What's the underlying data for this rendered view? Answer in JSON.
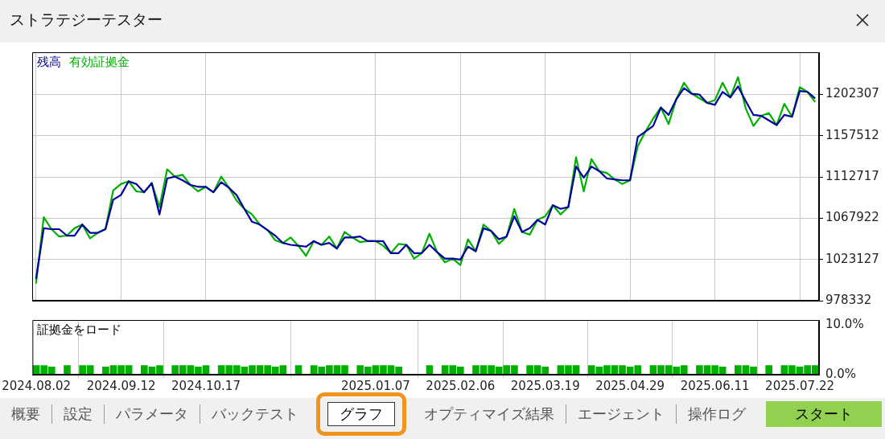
{
  "chart_data": [
    {
      "type": "line",
      "title": "ストラテジーテスター",
      "categories": [
        "2024.08.02",
        null,
        null,
        null,
        null,
        null,
        null,
        null,
        null,
        null,
        null,
        "2024.09.12",
        null,
        null,
        null,
        null,
        null,
        null,
        null,
        null,
        null,
        null,
        "2024.10.17",
        null,
        null,
        null,
        null,
        null,
        null,
        null,
        null,
        null,
        null,
        null,
        null,
        null,
        null,
        null,
        null,
        null,
        null,
        null,
        null,
        null,
        "2025.01.07",
        null,
        null,
        null,
        null,
        null,
        null,
        null,
        null,
        null,
        null,
        "2025.02.06",
        null,
        null,
        null,
        null,
        null,
        null,
        null,
        null,
        null,
        null,
        "2025.03.19",
        null,
        null,
        null,
        null,
        null,
        null,
        null,
        null,
        null,
        null,
        "2025.04.29",
        null,
        null,
        null,
        null,
        null,
        null,
        null,
        null,
        null,
        null,
        "2025.06.11",
        null,
        null,
        null,
        null,
        null,
        null,
        null,
        null,
        null,
        null,
        "2025.07.22",
        null,
        null
      ],
      "series": [
        {
          "name": "残高",
          "color": "#0000a0",
          "values": [
            1002000,
            1057000,
            1056000,
            1056000,
            1049000,
            1049000,
            1061000,
            1052000,
            1052000,
            1056000,
            1088000,
            1093000,
            1108000,
            1105000,
            1096000,
            1106000,
            1072000,
            1111000,
            1113000,
            1109000,
            1104000,
            1102000,
            1102000,
            1096000,
            1107000,
            1101000,
            1093000,
            1078000,
            1064000,
            1061000,
            1055000,
            1049000,
            1041000,
            1039000,
            1038000,
            1037000,
            1043000,
            1039000,
            1041000,
            1035000,
            1047000,
            1047000,
            1048000,
            1043000,
            1043000,
            1043000,
            1030000,
            1030000,
            1039000,
            1030000,
            1030000,
            1039000,
            1031000,
            1024000,
            1024000,
            1023000,
            1037000,
            1032000,
            1057000,
            1054000,
            1045000,
            1048000,
            1070000,
            1053000,
            1057000,
            1066000,
            1061000,
            1082000,
            1078000,
            1080000,
            1124000,
            1112000,
            1124000,
            1119000,
            1111000,
            1110000,
            1109000,
            1109000,
            1156000,
            1162000,
            1168000,
            1188000,
            1180000,
            1197000,
            1209000,
            1203000,
            1202000,
            1193000,
            1191000,
            1205000,
            1199000,
            1211000,
            1195000,
            1180000,
            1179000,
            1174000,
            1169000,
            1180000,
            1178000,
            1206000,
            1205000,
            1198000
          ]
        },
        {
          "name": "有効証拠金",
          "color": "#00b000",
          "values": [
            997000,
            1069000,
            1056000,
            1048000,
            1049000,
            1057000,
            1061000,
            1046000,
            1052000,
            1056000,
            1098000,
            1105000,
            1108000,
            1097000,
            1096000,
            1106000,
            1080000,
            1121000,
            1113000,
            1115000,
            1104000,
            1097000,
            1102000,
            1096000,
            1113000,
            1101000,
            1087000,
            1078000,
            1072000,
            1061000,
            1055000,
            1044000,
            1041000,
            1047000,
            1038000,
            1027000,
            1043000,
            1039000,
            1048000,
            1035000,
            1053000,
            1047000,
            1042000,
            1043000,
            1043000,
            1038000,
            1030000,
            1040000,
            1039000,
            1024000,
            1030000,
            1051000,
            1031000,
            1020000,
            1024000,
            1017000,
            1045000,
            1032000,
            1061000,
            1054000,
            1040000,
            1048000,
            1078000,
            1053000,
            1050000,
            1066000,
            1070000,
            1082000,
            1072000,
            1080000,
            1134000,
            1097000,
            1132000,
            1119000,
            1117000,
            1110000,
            1105000,
            1109000,
            1146000,
            1162000,
            1176000,
            1188000,
            1170000,
            1197000,
            1215000,
            1203000,
            1198000,
            1193000,
            1196000,
            1215000,
            1199000,
            1221000,
            1187000,
            1168000,
            1179000,
            1182000,
            1169000,
            1192000,
            1178000,
            1210000,
            1205000,
            1194000
          ]
        }
      ],
      "ylim": [
        978332,
        1248000
      ],
      "yticks": [
        978332,
        1023127,
        1067922,
        1112717,
        1157512,
        1202307
      ],
      "grid": true,
      "legend": "top left",
      "marker": "none",
      "line_style": "solid",
      "tick_labels": "y"
    },
    {
      "type": "bar",
      "title": "証拠金をロード",
      "categories": [
        "2024.08.02",
        null,
        null,
        null,
        null,
        null,
        null,
        null,
        null,
        null,
        null,
        "2024.09.12",
        null,
        null,
        null,
        null,
        null,
        null,
        null,
        null,
        null,
        null,
        "2024.10.17",
        null,
        null,
        null,
        null,
        null,
        null,
        null,
        null,
        null,
        null,
        null,
        null,
        null,
        null,
        null,
        null,
        null,
        null,
        null,
        null,
        null,
        "2025.01.07",
        null,
        null,
        null,
        null,
        null,
        null,
        null,
        null,
        null,
        null,
        "2025.02.06",
        null,
        null,
        null,
        null,
        null,
        null,
        null,
        null,
        null,
        null,
        "2025.03.19",
        null,
        null,
        null,
        null,
        null,
        null,
        null,
        null,
        null,
        null,
        "2025.04.29",
        null,
        null,
        null,
        null,
        null,
        null,
        null,
        null,
        null,
        null,
        "2025.06.11",
        null,
        null,
        null,
        null,
        null,
        null,
        null,
        null,
        null,
        null,
        "2025.07.22",
        null,
        null
      ],
      "color": "#00b000",
      "values": [
        1.9,
        1.9,
        1.6,
        null,
        1.9,
        null,
        1.9,
        1.9,
        null,
        1.6,
        1.9,
        1.9,
        1.9,
        null,
        1.9,
        1.6,
        1.9,
        null,
        1.9,
        1.9,
        1.9,
        1.6,
        1.9,
        null,
        1.9,
        1.9,
        1.9,
        1.6,
        1.9,
        1.9,
        1.9,
        1.6,
        1.9,
        null,
        1.9,
        null,
        1.9,
        1.6,
        1.9,
        1.9,
        1.9,
        null,
        1.9,
        1.6,
        1.9,
        1.9,
        1.9,
        1.6,
        null,
        null,
        null,
        1.9,
        null,
        1.9,
        1.9,
        1.6,
        null,
        1.9,
        1.9,
        1.9,
        1.6,
        1.9,
        1.9,
        null,
        1.9,
        1.9,
        1.6,
        null,
        1.9,
        1.9,
        1.9,
        null,
        1.9,
        1.6,
        1.9,
        1.9,
        1.9,
        1.6,
        1.9,
        null,
        1.9,
        1.9,
        1.9,
        1.6,
        1.9,
        null,
        1.9,
        1.9,
        1.9,
        1.6,
        null,
        1.9,
        1.9,
        1.6,
        null,
        1.9,
        null,
        1.9,
        1.9,
        1.6,
        1.9,
        1.9
      ],
      "ylim": [
        0,
        11
      ],
      "yticks": [
        {
          "value": 0,
          "label": "0.0%"
        },
        {
          "value": 10,
          "label": "10.0%"
        }
      ],
      "grid": "x",
      "annotations": [
        "概要",
        "設定",
        "パラメータ",
        "バックテスト",
        "グラフ",
        "オプティマイズ結果",
        "エージェント",
        "操作ログ",
        "スタート"
      ]
    }
  ]
}
